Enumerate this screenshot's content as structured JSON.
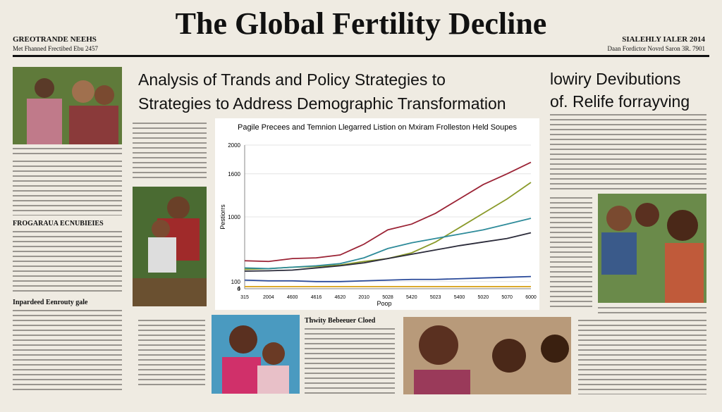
{
  "masthead": {
    "title": "The Global Fertility Decline",
    "left_line1": "GREOTRANDE NEEHS",
    "left_line2": "Met Fhanned Frectibed Ebu 2457",
    "right_line1": "SIALEHLY IALER 2014",
    "right_line2": "Daan Fordictor Novrd Saron 3R. 7901"
  },
  "headline": {
    "line1": "Analysis of Trands and Policy Strategies to",
    "line2": "Strategies to Address Demographic Transformation"
  },
  "side_headline": {
    "line1": "lowiry Devibutions",
    "line2": "of. Relife forrayving"
  },
  "sections": {
    "left_head": "FROGARAUA ECNUBIEIES",
    "left_head2": "Inpardeed Eenrouty gale",
    "bottom_head": "Thwity Bebeeuer Cloed"
  },
  "chart_data": {
    "type": "line",
    "title": "Pagile Precees and Temnion Llegarred Listion on Mxiram Frolleston Held Soupes",
    "y_label": "Pestiorrs",
    "x_label": "Poop",
    "categories": [
      "315",
      "2004",
      "4600",
      "4616",
      "4620",
      "2010",
      "5028",
      "5420",
      "5023",
      "5400",
      "5020",
      "5070",
      "6000"
    ],
    "ylim": [
      0,
      2000
    ],
    "yticks": [
      2000,
      1600,
      1000,
      100,
      4,
      0
    ],
    "grid": true,
    "series": [
      {
        "color": "#9b2335",
        "values": [
          390,
          380,
          420,
          430,
          470,
          620,
          820,
          900,
          1050,
          1250,
          1450,
          1600,
          1760
        ]
      },
      {
        "color": "#8a9a2a",
        "values": [
          270,
          280,
          300,
          310,
          330,
          380,
          420,
          500,
          650,
          850,
          1050,
          1250,
          1480
        ]
      },
      {
        "color": "#2e8b9a",
        "values": [
          290,
          280,
          300,
          320,
          350,
          430,
          560,
          640,
          700,
          760,
          820,
          900,
          980
        ]
      },
      {
        "color": "#2b2b3a",
        "values": [
          245,
          250,
          260,
          290,
          320,
          360,
          420,
          480,
          540,
          600,
          650,
          700,
          780
        ]
      },
      {
        "color": "#2a4a9a",
        "values": [
          120,
          110,
          110,
          100,
          100,
          110,
          120,
          130,
          130,
          140,
          150,
          160,
          170
        ]
      },
      {
        "color": "#d9a520",
        "values": [
          30,
          30,
          30,
          30,
          30,
          30,
          30,
          30,
          30,
          30,
          30,
          30,
          30
        ]
      }
    ]
  }
}
